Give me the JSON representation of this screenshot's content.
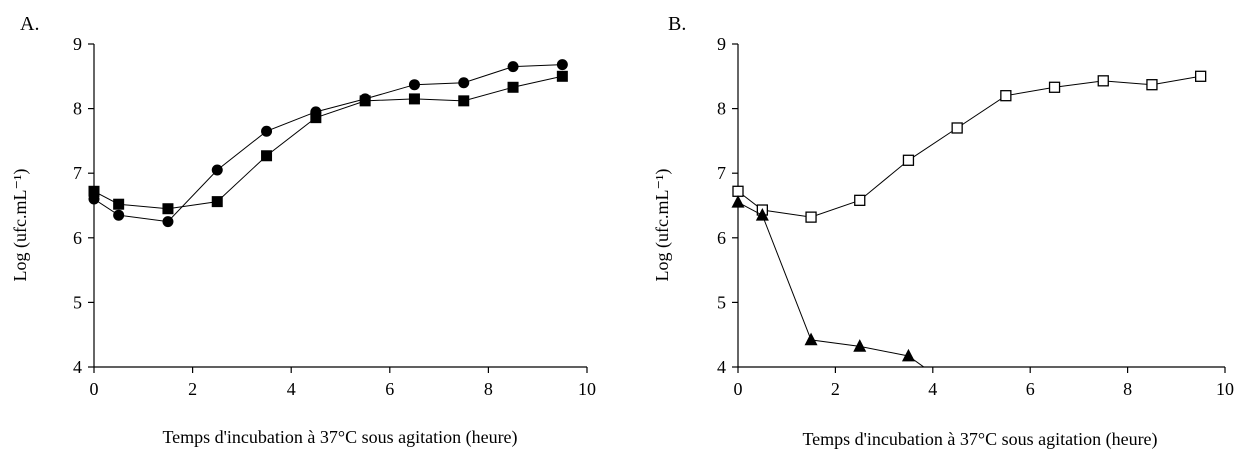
{
  "chart_data": [
    {
      "type": "line",
      "panel_label": "A.",
      "title": "",
      "xlabel": "Temps d'incubation à 37°C sous agitation (heure)",
      "ylabel": "Log (ufc.mL⁻¹)",
      "xlim": [
        0,
        10
      ],
      "ylim": [
        4,
        9
      ],
      "xticks": [
        0,
        2,
        4,
        6,
        8,
        10
      ],
      "yticks": [
        4,
        5,
        6,
        7,
        8,
        9
      ],
      "grid": false,
      "series": [
        {
          "marker": "filled-circle",
          "color": "#000000",
          "x": [
            0,
            0.5,
            1.5,
            2.5,
            3.5,
            4.5,
            5.5,
            6.5,
            7.5,
            8.5,
            9.5
          ],
          "values": [
            6.6,
            6.35,
            6.25,
            7.05,
            7.65,
            7.95,
            8.15,
            8.37,
            8.4,
            8.65,
            8.68
          ]
        },
        {
          "marker": "filled-square",
          "color": "#000000",
          "x": [
            0,
            0.5,
            1.5,
            2.5,
            3.5,
            4.5,
            5.5,
            6.5,
            7.5,
            8.5,
            9.5
          ],
          "values": [
            6.72,
            6.52,
            6.45,
            6.56,
            7.27,
            7.86,
            8.12,
            8.15,
            8.12,
            8.33,
            8.5
          ]
        }
      ]
    },
    {
      "type": "line",
      "panel_label": "B.",
      "title": "",
      "xlabel": "Temps d'incubation à 37°C sous agitation (heure)",
      "ylabel": "Log (ufc.mL⁻¹)",
      "xlim": [
        0,
        10
      ],
      "ylim": [
        4,
        9
      ],
      "xticks": [
        0,
        2,
        4,
        6,
        8,
        10
      ],
      "yticks": [
        4,
        5,
        6,
        7,
        8,
        9
      ],
      "grid": false,
      "series": [
        {
          "marker": "open-square",
          "color": "#000000",
          "x": [
            0,
            0.5,
            1.5,
            2.5,
            3.5,
            4.5,
            5.5,
            6.5,
            7.5,
            8.5,
            9.5
          ],
          "values": [
            6.72,
            6.43,
            6.32,
            6.58,
            7.2,
            7.7,
            8.2,
            8.33,
            8.43,
            8.37,
            8.5
          ]
        },
        {
          "marker": "filled-triangle",
          "color": "#000000",
          "x": [
            0,
            0.5,
            1.5,
            2.5,
            3.5
          ],
          "values": [
            6.55,
            6.35,
            4.42,
            4.32,
            4.17
          ],
          "tail_to": [
            4,
            3.9
          ]
        }
      ]
    }
  ]
}
